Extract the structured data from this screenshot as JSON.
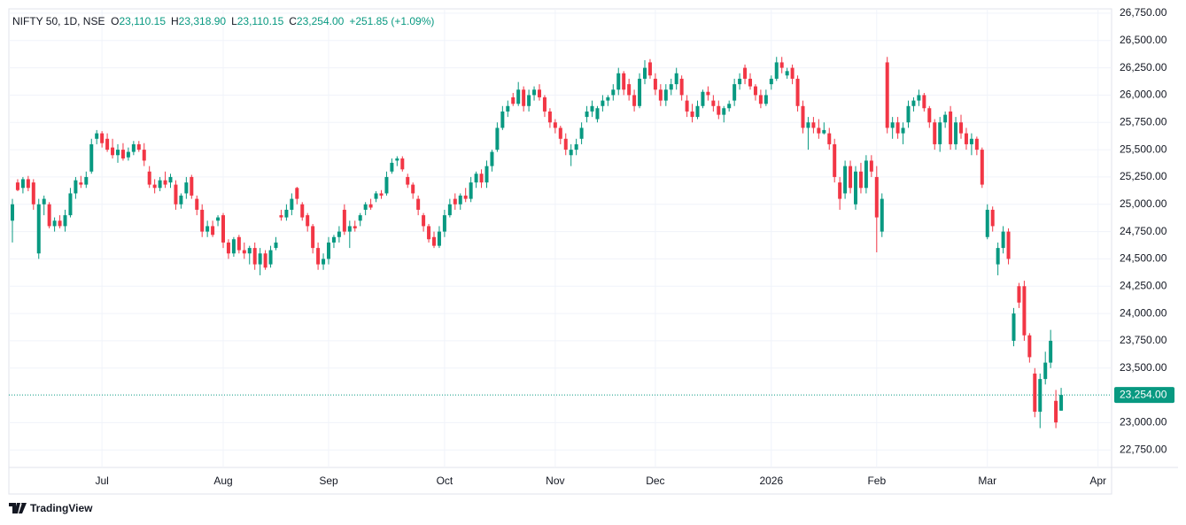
{
  "chart_data": {
    "type": "candlestick",
    "legend": {
      "symbol": "NIFTY 50, 1D, NSE",
      "fields": [
        {
          "label": "O",
          "value": "23,110.15"
        },
        {
          "label": "H",
          "value": "23,318.90"
        },
        {
          "label": "L",
          "value": "23,110.15"
        },
        {
          "label": "C",
          "value": "23,254.00"
        }
      ],
      "change": "+251.85 (+1.09%)"
    },
    "up_color": "#089981",
    "down_color": "#f23645",
    "categories": [
      null,
      null,
      null,
      null,
      null,
      null,
      null,
      null,
      null,
      null,
      null,
      null,
      null,
      null,
      null,
      null,
      null,
      "Jul",
      null,
      null,
      null,
      null,
      null,
      null,
      null,
      null,
      null,
      null,
      null,
      null,
      null,
      null,
      null,
      null,
      null,
      null,
      null,
      null,
      null,
      null,
      "Aug",
      null,
      null,
      null,
      null,
      null,
      null,
      null,
      null,
      null,
      null,
      null,
      null,
      null,
      null,
      null,
      null,
      null,
      null,
      null,
      "Sep",
      null,
      null,
      null,
      null,
      null,
      null,
      null,
      null,
      null,
      null,
      null,
      null,
      null,
      null,
      null,
      null,
      null,
      null,
      null,
      null,
      null,
      "Oct",
      null,
      null,
      null,
      null,
      null,
      null,
      null,
      null,
      null,
      null,
      null,
      null,
      null,
      null,
      null,
      null,
      null,
      null,
      null,
      null,
      "Nov",
      null,
      null,
      null,
      null,
      null,
      null,
      null,
      null,
      null,
      null,
      null,
      null,
      null,
      null,
      null,
      null,
      null,
      null,
      "Dec",
      null,
      null,
      null,
      null,
      null,
      null,
      null,
      null,
      null,
      null,
      null,
      null,
      null,
      null,
      null,
      null,
      null,
      null,
      null,
      null,
      null,
      "2026",
      null,
      null,
      null,
      null,
      null,
      null,
      null,
      null,
      null,
      null,
      null,
      null,
      null,
      null,
      null,
      null,
      null,
      null,
      null,
      "Feb",
      null,
      null,
      null,
      null,
      null,
      null,
      null,
      null,
      null,
      null,
      null,
      null,
      null,
      null,
      null,
      null,
      null,
      null,
      null,
      null,
      "Mar",
      null,
      null,
      null,
      null,
      null,
      null,
      null,
      null,
      null,
      null,
      null,
      null,
      null,
      null,
      null,
      null,
      null,
      null,
      null,
      null,
      "Apr"
    ],
    "ohlc": [
      [
        24850,
        25050,
        24650,
        25000
      ],
      [
        25200,
        25230,
        25120,
        25130
      ],
      [
        25150,
        25250,
        25100,
        25230
      ],
      [
        25230,
        25260,
        25120,
        25150
      ],
      [
        25200,
        25230,
        24950,
        25000
      ],
      [
        24550,
        25050,
        24500,
        25000
      ],
      [
        25000,
        25080,
        24900,
        25050
      ],
      [
        25000,
        25020,
        24780,
        24800
      ],
      [
        24800,
        24880,
        24750,
        24850
      ],
      [
        24850,
        24900,
        24780,
        24800
      ],
      [
        24800,
        24950,
        24750,
        24900
      ],
      [
        24900,
        25150,
        24880,
        25100
      ],
      [
        25100,
        25250,
        25050,
        25220
      ],
      [
        25200,
        25260,
        25150,
        25180
      ],
      [
        25180,
        25300,
        25150,
        25250
      ],
      [
        25300,
        25600,
        25280,
        25550
      ],
      [
        25600,
        25680,
        25550,
        25650
      ],
      [
        25650,
        25670,
        25520,
        25560
      ],
      [
        25600,
        25650,
        25480,
        25500
      ],
      [
        25520,
        25600,
        25420,
        25450
      ],
      [
        25450,
        25550,
        25380,
        25500
      ],
      [
        25500,
        25560,
        25400,
        25420
      ],
      [
        25430,
        25520,
        25400,
        25480
      ],
      [
        25480,
        25580,
        25450,
        25550
      ],
      [
        25550,
        25580,
        25480,
        25500
      ],
      [
        25500,
        25560,
        25350,
        25400
      ],
      [
        25300,
        25350,
        25150,
        25180
      ],
      [
        25180,
        25230,
        25100,
        25150
      ],
      [
        25150,
        25250,
        25120,
        25220
      ],
      [
        25220,
        25300,
        25150,
        25180
      ],
      [
        25200,
        25280,
        25150,
        25250
      ],
      [
        25180,
        25220,
        24950,
        25000
      ],
      [
        25000,
        25100,
        24960,
        25080
      ],
      [
        25100,
        25250,
        25050,
        25200
      ],
      [
        25250,
        25270,
        25050,
        25080
      ],
      [
        25050,
        25080,
        24900,
        24950
      ],
      [
        24950,
        25000,
        24700,
        24750
      ],
      [
        24750,
        24850,
        24700,
        24800
      ],
      [
        24800,
        24850,
        24700,
        24720
      ],
      [
        24850,
        24900,
        24800,
        24880
      ],
      [
        24900,
        24920,
        24600,
        24650
      ],
      [
        24650,
        24680,
        24500,
        24550
      ],
      [
        24550,
        24700,
        24520,
        24680
      ],
      [
        24700,
        24720,
        24550,
        24580
      ],
      [
        24580,
        24650,
        24500,
        24550
      ],
      [
        24550,
        24620,
        24450,
        24600
      ],
      [
        24600,
        24650,
        24400,
        24450
      ],
      [
        24450,
        24600,
        24350,
        24550
      ],
      [
        24550,
        24580,
        24400,
        24420
      ],
      [
        24450,
        24620,
        24420,
        24580
      ],
      [
        24600,
        24700,
        24580,
        24650
      ],
      [
        24900,
        24950,
        24850,
        24880
      ],
      [
        24880,
        25000,
        24850,
        24950
      ],
      [
        24950,
        25100,
        24900,
        25050
      ],
      [
        25150,
        25160,
        25000,
        25050
      ],
      [
        25000,
        25020,
        24850,
        24880
      ],
      [
        24900,
        24920,
        24750,
        24800
      ],
      [
        24800,
        24820,
        24550,
        24600
      ],
      [
        24600,
        24650,
        24400,
        24450
      ],
      [
        24450,
        24550,
        24400,
        24500
      ],
      [
        24500,
        24700,
        24450,
        24650
      ],
      [
        24650,
        24720,
        24600,
        24700
      ],
      [
        24700,
        24800,
        24650,
        24750
      ],
      [
        24950,
        25000,
        24720,
        24750
      ],
      [
        24750,
        24850,
        24600,
        24800
      ],
      [
        24800,
        24850,
        24750,
        24780
      ],
      [
        24850,
        24920,
        24800,
        24900
      ],
      [
        24950,
        25020,
        24900,
        25000
      ],
      [
        25000,
        25050,
        24950,
        24970
      ],
      [
        25050,
        25120,
        25020,
        25100
      ],
      [
        25100,
        25130,
        25050,
        25080
      ],
      [
        25100,
        25300,
        25080,
        25250
      ],
      [
        25300,
        25420,
        25280,
        25380
      ],
      [
        25400,
        25440,
        25350,
        25420
      ],
      [
        25420,
        25440,
        25300,
        25320
      ],
      [
        25250,
        25280,
        25150,
        25180
      ],
      [
        25180,
        25200,
        25050,
        25100
      ],
      [
        25050,
        25080,
        24900,
        24950
      ],
      [
        24900,
        24920,
        24750,
        24800
      ],
      [
        24800,
        24820,
        24650,
        24680
      ],
      [
        24700,
        24750,
        24600,
        24620
      ],
      [
        24620,
        24800,
        24600,
        24750
      ],
      [
        24750,
        24950,
        24700,
        24900
      ],
      [
        24900,
        25050,
        24880,
        25000
      ],
      [
        25050,
        25100,
        24950,
        25000
      ],
      [
        25000,
        25100,
        24950,
        25080
      ],
      [
        25080,
        25150,
        25020,
        25050
      ],
      [
        25050,
        25250,
        25020,
        25200
      ],
      [
        25200,
        25300,
        25150,
        25280
      ],
      [
        25280,
        25320,
        25150,
        25200
      ],
      [
        25200,
        25400,
        25150,
        25350
      ],
      [
        25350,
        25500,
        25300,
        25480
      ],
      [
        25500,
        25750,
        25480,
        25700
      ],
      [
        25700,
        25900,
        25680,
        25850
      ],
      [
        25850,
        25950,
        25800,
        25900
      ],
      [
        25980,
        26020,
        25900,
        25920
      ],
      [
        25920,
        26120,
        25900,
        26050
      ],
      [
        26050,
        26080,
        25850,
        25900
      ],
      [
        25900,
        26050,
        25850,
        26000
      ],
      [
        26000,
        26080,
        25950,
        26050
      ],
      [
        26050,
        26100,
        25950,
        25980
      ],
      [
        25980,
        26000,
        25800,
        25850
      ],
      [
        25850,
        25880,
        25700,
        25750
      ],
      [
        25750,
        25780,
        25650,
        25700
      ],
      [
        25700,
        25720,
        25550,
        25600
      ],
      [
        25600,
        25650,
        25450,
        25500
      ],
      [
        25450,
        25550,
        25350,
        25500
      ],
      [
        25500,
        25600,
        25450,
        25550
      ],
      [
        25600,
        25750,
        25550,
        25700
      ],
      [
        25800,
        25900,
        25750,
        25850
      ],
      [
        25850,
        25950,
        25800,
        25900
      ],
      [
        25780,
        25900,
        25750,
        25880
      ],
      [
        25900,
        26000,
        25850,
        25950
      ],
      [
        25950,
        26000,
        25900,
        25980
      ],
      [
        26000,
        26100,
        25950,
        26050
      ],
      [
        26050,
        26250,
        26000,
        26200
      ],
      [
        26200,
        26220,
        26000,
        26050
      ],
      [
        26100,
        26150,
        25950,
        26000
      ],
      [
        26000,
        26050,
        25850,
        25900
      ],
      [
        25900,
        26200,
        25880,
        26150
      ],
      [
        26150,
        26320,
        26100,
        26250
      ],
      [
        26300,
        26330,
        26150,
        26180
      ],
      [
        26150,
        26200,
        26000,
        26050
      ],
      [
        26050,
        26100,
        25900,
        25950
      ],
      [
        25950,
        26100,
        25900,
        26050
      ],
      [
        26050,
        26150,
        26000,
        26100
      ],
      [
        26100,
        26250,
        26050,
        26200
      ],
      [
        26150,
        26180,
        25950,
        26000
      ],
      [
        25950,
        26000,
        25800,
        25850
      ],
      [
        25850,
        25920,
        25750,
        25800
      ],
      [
        25800,
        25950,
        25780,
        25900
      ],
      [
        25900,
        26050,
        25880,
        26030
      ],
      [
        26030,
        26080,
        25950,
        26000
      ],
      [
        25950,
        26000,
        25850,
        25900
      ],
      [
        25900,
        25950,
        25780,
        25820
      ],
      [
        25820,
        25900,
        25750,
        25880
      ],
      [
        25880,
        25950,
        25850,
        25920
      ],
      [
        25950,
        26150,
        25900,
        26100
      ],
      [
        26100,
        26200,
        26050,
        26150
      ],
      [
        26250,
        26280,
        26100,
        26150
      ],
      [
        26150,
        26200,
        26050,
        26080
      ],
      [
        26080,
        26100,
        25950,
        26000
      ],
      [
        26000,
        26050,
        25880,
        25920
      ],
      [
        25920,
        26050,
        25900,
        26000
      ],
      [
        26100,
        26180,
        26050,
        26150
      ],
      [
        26150,
        26350,
        26130,
        26300
      ],
      [
        26300,
        26350,
        26200,
        26250
      ],
      [
        26180,
        26250,
        26150,
        26220
      ],
      [
        26250,
        26280,
        26100,
        26150
      ],
      [
        26150,
        26180,
        25850,
        25900
      ],
      [
        25900,
        25950,
        25650,
        25700
      ],
      [
        25700,
        25800,
        25500,
        25750
      ],
      [
        25750,
        25800,
        25650,
        25700
      ],
      [
        25700,
        25780,
        25600,
        25650
      ],
      [
        25650,
        25750,
        25640,
        25680
      ],
      [
        25650,
        25700,
        25500,
        25550
      ],
      [
        25550,
        25600,
        25200,
        25250
      ],
      [
        25200,
        25250,
        24950,
        25050
      ],
      [
        25100,
        25400,
        25050,
        25350
      ],
      [
        25350,
        25400,
        25100,
        25150
      ],
      [
        25000,
        25350,
        24950,
        25300
      ],
      [
        25300,
        25380,
        25100,
        25150
      ],
      [
        25150,
        25450,
        25100,
        25400
      ],
      [
        25400,
        25450,
        25250,
        25300
      ],
      [
        25250,
        25350,
        24560,
        24880
      ],
      [
        24750,
        25100,
        24700,
        25050
      ],
      [
        26300,
        26350,
        25650,
        25700
      ],
      [
        25700,
        25800,
        25600,
        25750
      ],
      [
        25750,
        25800,
        25600,
        25650
      ],
      [
        25650,
        25750,
        25550,
        25700
      ],
      [
        25750,
        25950,
        25700,
        25900
      ],
      [
        25900,
        25980,
        25850,
        25950
      ],
      [
        25950,
        26050,
        25900,
        26000
      ],
      [
        26000,
        26020,
        25850,
        25880
      ],
      [
        25880,
        25900,
        25700,
        25750
      ],
      [
        25750,
        25780,
        25500,
        25550
      ],
      [
        25550,
        25800,
        25480,
        25750
      ],
      [
        25750,
        25850,
        25700,
        25820
      ],
      [
        25850,
        25900,
        25500,
        25550
      ],
      [
        25550,
        25800,
        25500,
        25750
      ],
      [
        25750,
        25820,
        25600,
        25650
      ],
      [
        25650,
        25700,
        25500,
        25550
      ],
      [
        25550,
        25650,
        25450,
        25600
      ],
      [
        25600,
        25620,
        25450,
        25500
      ],
      [
        25500,
        25520,
        25150,
        25180
      ],
      [
        24700,
        25000,
        24680,
        24950
      ],
      [
        24950,
        24980,
        24750,
        24800
      ],
      [
        24450,
        24650,
        24350,
        24600
      ],
      [
        24600,
        24800,
        24550,
        24750
      ],
      [
        24750,
        24780,
        24450,
        24500
      ],
      [
        23750,
        24050,
        23700,
        24000
      ],
      [
        24250,
        24280,
        24050,
        24100
      ],
      [
        24250,
        24300,
        23750,
        23800
      ],
      [
        23800,
        23820,
        23550,
        23600
      ],
      [
        23450,
        23500,
        23050,
        23100
      ],
      [
        23100,
        23450,
        22950,
        23400
      ],
      [
        23400,
        23650,
        23350,
        23550
      ],
      [
        23550,
        23850,
        23500,
        23750
      ],
      [
        23200,
        23300,
        22950,
        23002.15
      ],
      [
        23110.15,
        23318.9,
        23110.15,
        23254
      ],
      null,
      null,
      null,
      null,
      null,
      null,
      null,
      null
    ],
    "ylim": [
      22590,
      26790
    ],
    "yticks": [
      {
        "value": 22750,
        "label": "22,750.00"
      },
      {
        "value": 23000,
        "label": "23,000.00"
      },
      {
        "value": 23500,
        "label": "23,500.00"
      },
      {
        "value": 23750,
        "label": "23,750.00"
      },
      {
        "value": 24000,
        "label": "24,000.00"
      },
      {
        "value": 24250,
        "label": "24,250.00"
      },
      {
        "value": 24500,
        "label": "24,500.00"
      },
      {
        "value": 24750,
        "label": "24,750.00"
      },
      {
        "value": 25000,
        "label": "25,000.00"
      },
      {
        "value": 25250,
        "label": "25,250.00"
      },
      {
        "value": 25500,
        "label": "25,500.00"
      },
      {
        "value": 25750,
        "label": "25,750.00"
      },
      {
        "value": 26000,
        "label": "26,000.00"
      },
      {
        "value": 26250,
        "label": "26,250.00"
      },
      {
        "value": 26500,
        "label": "26,500.00"
      },
      {
        "value": 26750,
        "label": "26,750.00"
      }
    ],
    "last_price": {
      "value": 23254,
      "label": "23,254.00"
    },
    "grid": true,
    "brand": "TradingView"
  }
}
